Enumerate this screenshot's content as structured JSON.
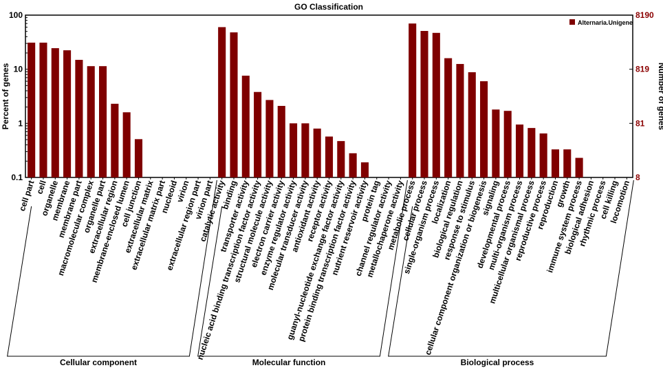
{
  "chart_data": {
    "type": "bar",
    "title": "GO Classification",
    "ylabel": "Percent of genes",
    "y2label": "Number of genes",
    "log_scale": true,
    "color": "#7f0000",
    "legend": {
      "name": "Alternaria.Unigene",
      "corner": "top-right"
    },
    "ylim": [
      0.1,
      100
    ],
    "yticks": [
      {
        "value": 100,
        "label": "100"
      },
      10,
      1,
      0.1
    ],
    "y2lim": [
      8.19,
      8190
    ],
    "y2ticks": [
      {
        "value": 8190,
        "label": "8190"
      },
      {
        "value": 819,
        "label": "819"
      },
      {
        "value": 81.9,
        "label": "81"
      },
      {
        "value": 8.19,
        "label": "8"
      }
    ],
    "groups": [
      {
        "name": "Cellular component",
        "categories": [
          "cell part",
          "cell",
          "organelle",
          "membrane",
          "membrane part",
          "macromolecular complex",
          "organelle part",
          "extracellular region",
          "membrane-enclosed lumen",
          "cell junction",
          "extracellular matrix",
          "extracellular matrix part",
          "nucleoid",
          "virion",
          "extracellular region part",
          "virion part"
        ],
        "values": [
          31,
          31,
          24.5,
          22.4,
          14.9,
          11.4,
          11.4,
          2.3,
          1.6,
          0.51,
          null,
          null,
          null,
          null,
          null,
          null
        ]
      },
      {
        "name": "Molecular function",
        "categories": [
          "catalytic activity",
          "binding",
          "transporter activity",
          "nucleic acid binding transcription factor activity",
          "structural molecule activity",
          "electron carrier activity",
          "enzyme regulator activity",
          "molecular transducer activity",
          "antioxidant activity",
          "receptor activity",
          "guanyl-nucleotide exchange factor activity",
          "protein binding transcription factor activity",
          "nutrient reservoir activity",
          "protein tag",
          "channel regulator activity",
          "metallochaperone activity"
        ],
        "values": [
          60,
          48,
          7.6,
          3.8,
          2.7,
          2.1,
          1.0,
          1.0,
          0.8,
          0.57,
          0.47,
          0.28,
          0.19,
          null,
          null,
          null
        ]
      },
      {
        "name": "Biological process",
        "categories": [
          "metabolic process",
          "cellular process",
          "single-organism process",
          "localization",
          "biological regulation",
          "response to stimulus",
          "cellular component organization or biogenesis",
          "signaling",
          "developmental process",
          "multi-organism process",
          "multicellular organismal process",
          "reproductive process",
          "reproduction",
          "growth",
          "immune system process",
          "biological adhesion",
          "rhythmic process",
          "cell killing",
          "locomotion"
        ],
        "values": [
          70,
          51,
          47,
          16,
          12.5,
          8.8,
          6.0,
          1.8,
          1.7,
          0.95,
          0.82,
          0.65,
          0.33,
          0.33,
          0.23,
          null,
          null,
          null,
          null
        ]
      }
    ]
  }
}
